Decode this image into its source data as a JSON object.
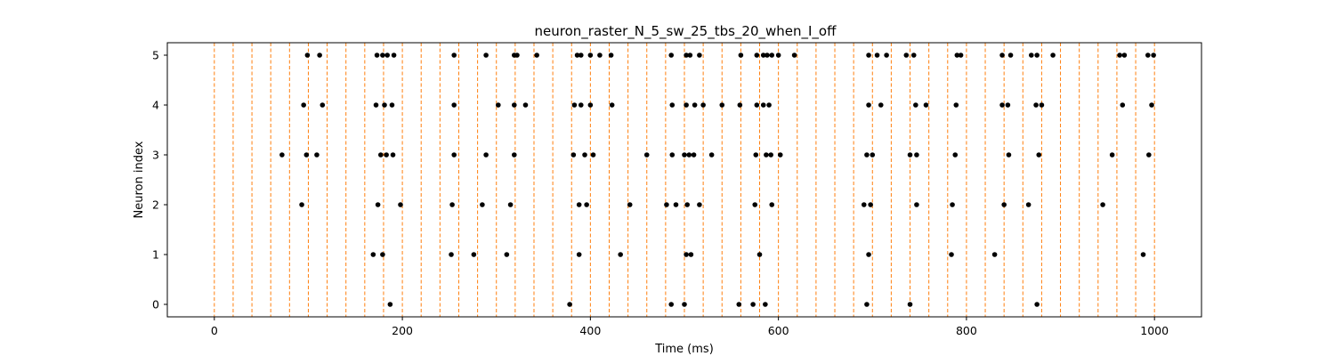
{
  "chart_data": {
    "type": "scatter",
    "title": "neuron_raster_N_5_sw_25_tbs_20_when_I_off",
    "xlabel": "Time (ms)",
    "ylabel": "Neuron index",
    "xlim": [
      -50,
      1050
    ],
    "ylim": [
      -0.25,
      5.25
    ],
    "xticks": [
      0,
      200,
      400,
      600,
      800,
      1000
    ],
    "yticks": [
      0,
      1,
      2,
      3,
      4,
      5
    ],
    "grid": false,
    "point_color": "#000000",
    "vline_color": "#ff7f0e",
    "vlines": [
      0,
      20,
      40,
      60,
      80,
      100,
      120,
      140,
      160,
      180,
      200,
      220,
      240,
      260,
      280,
      300,
      320,
      340,
      360,
      380,
      400,
      420,
      440,
      460,
      480,
      500,
      520,
      540,
      560,
      580,
      600,
      620,
      640,
      660,
      680,
      700,
      720,
      740,
      760,
      780,
      800,
      820,
      840,
      860,
      880,
      900,
      920,
      940,
      960,
      980,
      1000
    ],
    "series": [
      {
        "neuron": 0,
        "times": [
          187,
          378,
          486,
          500,
          558,
          573,
          586,
          694,
          740,
          875
        ]
      },
      {
        "neuron": 1,
        "times": [
          169,
          179,
          252,
          276,
          311,
          388,
          432,
          502,
          507,
          580,
          696,
          784,
          830,
          988
        ]
      },
      {
        "neuron": 2,
        "times": [
          93,
          174,
          198,
          253,
          285,
          315,
          388,
          396,
          442,
          481,
          491,
          503,
          516,
          575,
          593,
          691,
          698,
          747,
          785,
          840,
          866,
          945
        ]
      },
      {
        "neuron": 3,
        "times": [
          72,
          98,
          109,
          177,
          183,
          190,
          255,
          289,
          319,
          382,
          394,
          403,
          460,
          487,
          500,
          505,
          510,
          529,
          576,
          587,
          592,
          602,
          694,
          700,
          740,
          747,
          788,
          845,
          877,
          955,
          994
        ]
      },
      {
        "neuron": 4,
        "times": [
          95,
          115,
          172,
          181,
          189,
          255,
          302,
          319,
          331,
          383,
          390,
          400,
          423,
          487,
          502,
          511,
          520,
          540,
          559,
          577,
          584,
          590,
          696,
          709,
          746,
          757,
          789,
          838,
          844,
          874,
          880,
          966,
          997
        ]
      },
      {
        "neuron": 5,
        "times": [
          99,
          112,
          173,
          179,
          184,
          191,
          255,
          289,
          319,
          322,
          343,
          386,
          390,
          400,
          410,
          422,
          486,
          502,
          506,
          516,
          560,
          577,
          584,
          588,
          593,
          600,
          617,
          696,
          705,
          715,
          736,
          744,
          790,
          794,
          838,
          847,
          869,
          875,
          892,
          963,
          968,
          993,
          999
        ]
      }
    ]
  }
}
